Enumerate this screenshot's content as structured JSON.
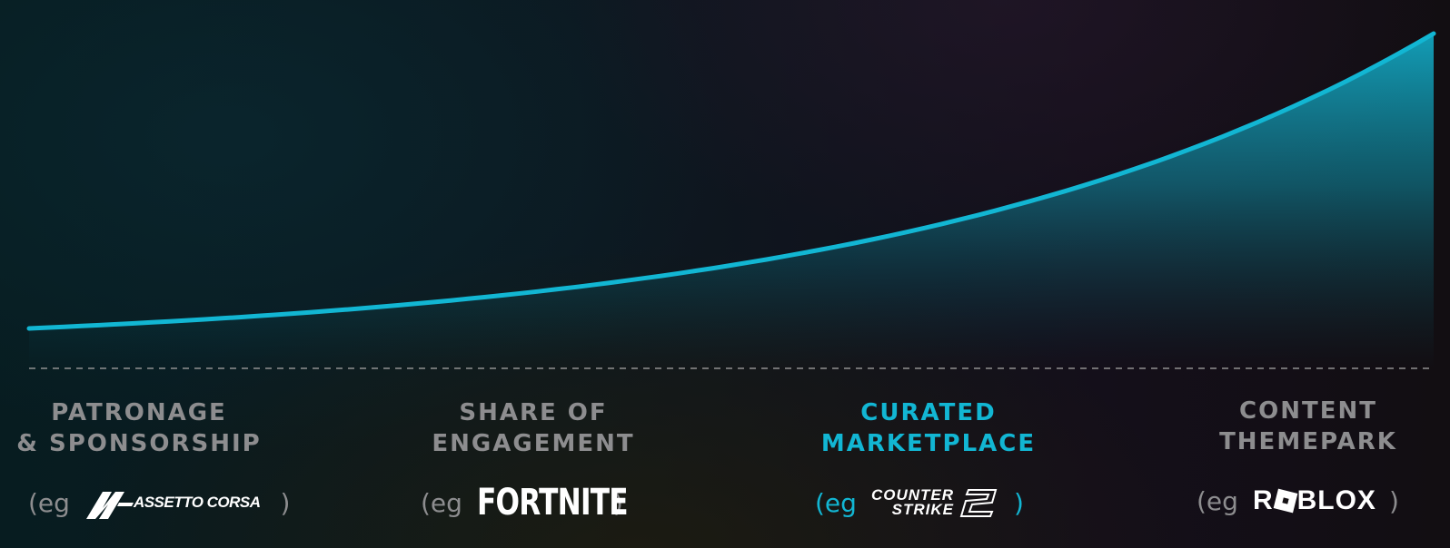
{
  "stages": [
    {
      "id": "patronage",
      "title_line1": "PATRONAGE",
      "title_line2": "& SPONSORSHIP",
      "eg_prefix": "(eg",
      "eg_suffix": ")",
      "example_logo_text": "ASSETTO CORSA",
      "example_logo_icon": "assetto-corsa-logo",
      "highlighted": false
    },
    {
      "id": "share-of-engagement",
      "title_line1": "SHARE OF",
      "title_line2": "ENGAGEMENT",
      "eg_prefix": "(eg",
      "eg_suffix": ")",
      "example_logo_text": "FORTNITE",
      "example_logo_icon": "fortnite-logo",
      "highlighted": false
    },
    {
      "id": "curated-marketplace",
      "title_line1": "CURATED",
      "title_line2": "MARKETPLACE",
      "eg_prefix": "(eg",
      "eg_suffix": ")",
      "example_logo_text_line1": "COUNTER",
      "example_logo_text_line2": "STRIKE",
      "example_logo_icon": "counter-strike-2-logo",
      "highlighted": true
    },
    {
      "id": "content-themepark",
      "title_line1": "CONTENT",
      "title_line2": "THEMEPARK",
      "eg_prefix": "(eg",
      "eg_suffix": ")",
      "example_logo_text_a": "R",
      "example_logo_text_b": "BLOX",
      "example_logo_icon": "roblox-logo",
      "highlighted": false
    }
  ],
  "colors": {
    "curve": "#12b6d3",
    "highlight_text": "#12b6d3",
    "muted_text": "#8d8d8f",
    "logo_text": "#ffffff",
    "baseline": "#9a9a9a"
  },
  "curve": {
    "shape": "exponential-growth",
    "baseline_style": "dashed"
  }
}
